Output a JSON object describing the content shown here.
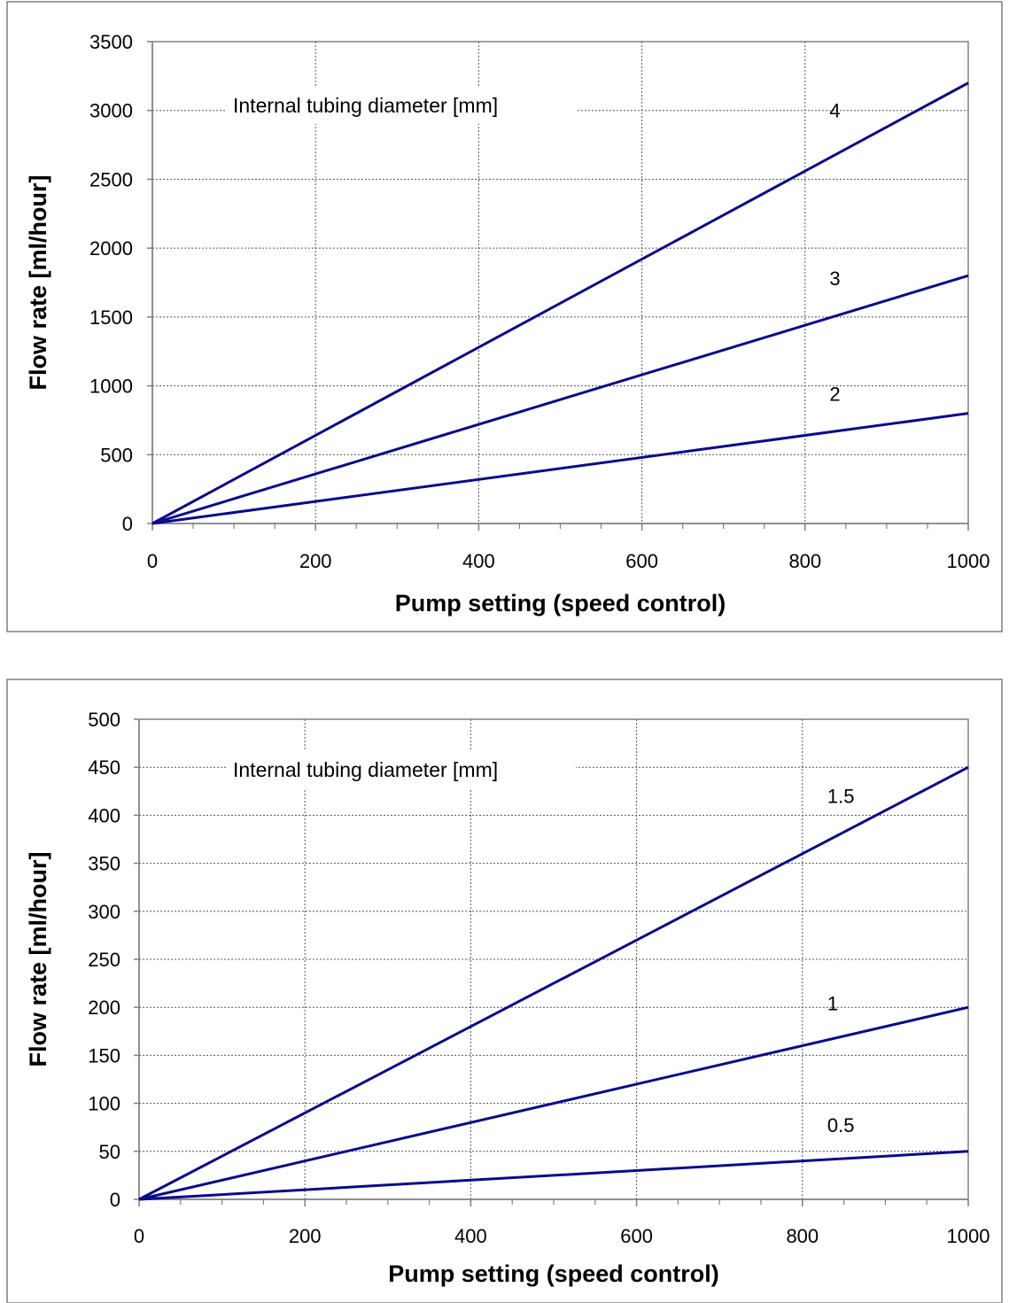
{
  "chart_data": [
    {
      "type": "line",
      "annotation": "Internal tubing diameter [mm]",
      "xlabel": "Pump setting (speed control)",
      "ylabel": "Flow rate [ml/hour]",
      "xlim": [
        0,
        1000
      ],
      "ylim": [
        0,
        3500
      ],
      "xticks": [
        0,
        200,
        400,
        600,
        800,
        1000
      ],
      "yticks": [
        0,
        500,
        1000,
        1500,
        2000,
        2500,
        3000,
        3500
      ],
      "x_minor_step": 50,
      "grid": true,
      "line_color": "#0a0a8a",
      "series": [
        {
          "name": "4",
          "x": [
            0,
            1000
          ],
          "y": [
            0,
            3200
          ],
          "label_x": 830,
          "label_y": 2950
        },
        {
          "name": "3",
          "x": [
            0,
            1000
          ],
          "y": [
            0,
            1800
          ],
          "label_x": 830,
          "label_y": 1730
        },
        {
          "name": "2",
          "x": [
            0,
            1000
          ],
          "y": [
            0,
            800
          ],
          "label_x": 830,
          "label_y": 890
        }
      ]
    },
    {
      "type": "line",
      "annotation": "Internal tubing diameter [mm]",
      "xlabel": "Pump setting (speed control)",
      "ylabel": "Flow rate [ml/hour]",
      "xlim": [
        0,
        1000
      ],
      "ylim": [
        0,
        500
      ],
      "xticks": [
        0,
        200,
        400,
        600,
        800,
        1000
      ],
      "yticks": [
        0,
        50,
        100,
        150,
        200,
        250,
        300,
        350,
        400,
        450,
        500
      ],
      "x_minor_step": 50,
      "grid": true,
      "line_color": "#0a0a8a",
      "series": [
        {
          "name": "1.5",
          "x": [
            0,
            1000
          ],
          "y": [
            0,
            450
          ],
          "label_x": 830,
          "label_y": 413
        },
        {
          "name": "1",
          "x": [
            0,
            1000
          ],
          "y": [
            0,
            200
          ],
          "label_x": 830,
          "label_y": 197
        },
        {
          "name": "0.5",
          "x": [
            0,
            1000
          ],
          "y": [
            0,
            50
          ],
          "label_x": 830,
          "label_y": 70
        }
      ]
    }
  ]
}
